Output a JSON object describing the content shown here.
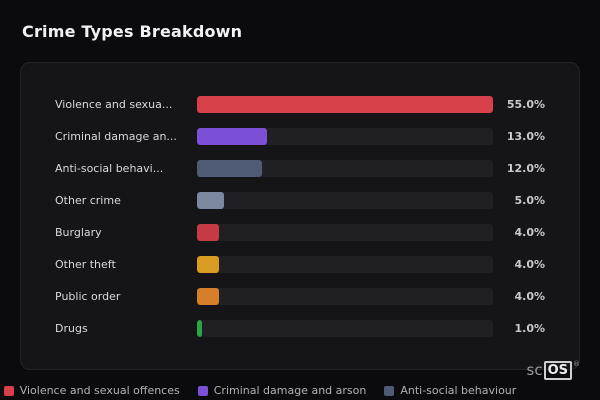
{
  "title": "Crime Types Breakdown",
  "chart_data": {
    "type": "bar",
    "orientation": "horizontal",
    "categories": [
      "Violence and sexua...",
      "Criminal damage an...",
      "Anti-social behavi...",
      "Other crime",
      "Burglary",
      "Other theft",
      "Public order",
      "Drugs"
    ],
    "values": [
      55.0,
      13.0,
      12.0,
      5.0,
      4.0,
      4.0,
      4.0,
      1.0
    ],
    "value_labels": [
      "55.0%",
      "13.0%",
      "12.0%",
      "5.0%",
      "4.0%",
      "4.0%",
      "4.0%",
      "1.0%"
    ],
    "colors": [
      "#d6404a",
      "#7b4fd6",
      "#4f5b74",
      "#7c87a0",
      "#c53b44",
      "#d99c22",
      "#d67e2a",
      "#2aa546"
    ],
    "scale_max": 55,
    "xlim": [
      0,
      55
    ],
    "xlabel": "",
    "ylabel": "",
    "grid": false,
    "legend_position": "bottom"
  },
  "legend": [
    {
      "label": "Violence and sexual offences",
      "color": "#d6404a"
    },
    {
      "label": "Criminal damage and arson",
      "color": "#7b4fd6"
    },
    {
      "label": "Anti-social behaviour",
      "color": "#4f5b74"
    }
  ],
  "logo": {
    "prefix": "sc",
    "boxed": "OS",
    "reg": "®"
  }
}
